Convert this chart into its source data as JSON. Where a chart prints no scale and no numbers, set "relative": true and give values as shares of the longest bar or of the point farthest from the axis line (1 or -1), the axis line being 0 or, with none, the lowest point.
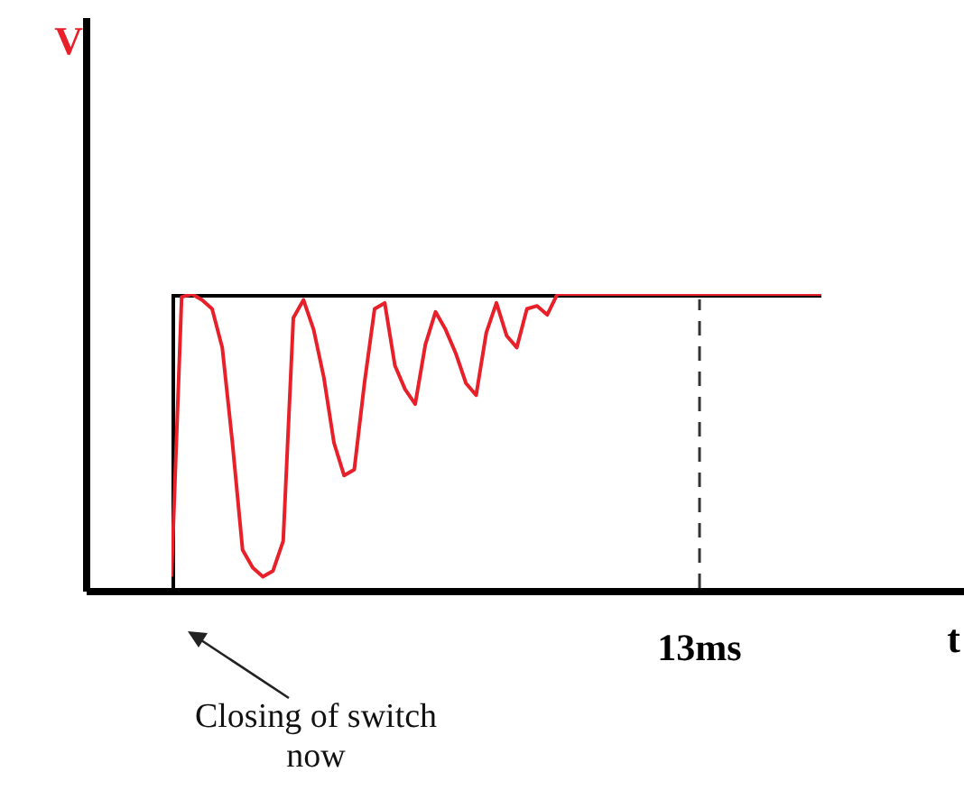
{
  "chart_data": {
    "type": "line",
    "relative": true,
    "xlabel": "t",
    "categories": [
      null,
      null,
      null,
      null,
      null,
      null,
      null,
      null,
      null,
      null,
      null,
      null,
      null,
      null,
      null,
      null,
      null,
      null,
      null,
      null,
      null,
      null,
      null,
      null,
      null,
      null,
      null,
      null,
      null,
      null,
      null,
      null,
      null,
      null,
      null,
      null,
      null,
      null,
      null,
      null,
      null,
      null,
      null,
      null,
      null,
      null,
      null,
      null,
      null,
      null,
      null,
      null,
      null,
      null,
      null,
      null,
      null,
      null,
      null,
      null,
      null,
      null,
      null,
      null,
      null
    ],
    "series": [
      {
        "type": "step",
        "color": "#000000",
        "values": [
          0,
          1,
          1,
          1,
          1,
          1,
          1,
          1,
          1,
          1,
          1,
          1,
          1,
          1,
          1,
          1,
          1,
          1,
          1,
          1,
          1,
          1,
          1,
          1,
          1,
          1,
          1,
          1,
          1,
          1,
          1,
          1,
          1,
          1,
          1,
          1,
          1,
          1,
          1,
          1,
          1,
          1,
          1,
          1,
          1,
          1,
          1,
          1,
          1,
          1,
          1,
          1,
          1,
          1,
          1,
          1,
          1,
          1,
          1,
          1,
          1,
          1,
          1,
          1,
          1
        ]
      },
      {
        "color": "#e8202a",
        "values": [
          0.05,
          0.99,
          1,
          0.98,
          0.95,
          0.82,
          0.5,
          0.14,
          0.08,
          0.05,
          0.07,
          0.17,
          0.92,
          0.98,
          0.88,
          0.72,
          0.5,
          0.39,
          0.41,
          0.7,
          0.95,
          0.97,
          0.76,
          0.68,
          0.63,
          0.83,
          0.94,
          0.88,
          0.8,
          0.7,
          0.66,
          0.87,
          0.97,
          0.86,
          0.82,
          0.95,
          0.96,
          0.93,
          1,
          1,
          1,
          1,
          1,
          1,
          1,
          1,
          1,
          1,
          1,
          1,
          1,
          1,
          1,
          1,
          1,
          1,
          1,
          1,
          1,
          1,
          1,
          1,
          1,
          1,
          1
        ]
      }
    ],
    "annotations": [
      "V",
      "13ms",
      "Closing of switch\nnow"
    ]
  }
}
